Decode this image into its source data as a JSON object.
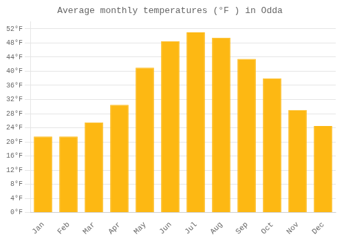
{
  "chart_data": {
    "type": "bar",
    "title": "Average monthly temperatures (°F ) in Odda",
    "categories": [
      "Jan",
      "Feb",
      "Mar",
      "Apr",
      "May",
      "Jun",
      "Jul",
      "Aug",
      "Sep",
      "Oct",
      "Nov",
      "Dec"
    ],
    "values": [
      21.5,
      21.5,
      25.5,
      30.5,
      41.0,
      48.5,
      51.0,
      49.5,
      43.5,
      38.0,
      29.0,
      24.5
    ],
    "color": "#FDB813",
    "ylim": [
      0,
      54
    ],
    "yticks": [
      {
        "value": 0,
        "label": "0°F"
      },
      {
        "value": 4,
        "label": "4°F"
      },
      {
        "value": 8,
        "label": "8°F"
      },
      {
        "value": 12,
        "label": "12°F"
      },
      {
        "value": 16,
        "label": "16°F"
      },
      {
        "value": 20,
        "label": "20°F"
      },
      {
        "value": 24,
        "label": "24°F"
      },
      {
        "value": 28,
        "label": "28°F"
      },
      {
        "value": 32,
        "label": "32°F"
      },
      {
        "value": 36,
        "label": "36°F"
      },
      {
        "value": 40,
        "label": "40°F"
      },
      {
        "value": 44,
        "label": "44°F"
      },
      {
        "value": 48,
        "label": "48°F"
      },
      {
        "value": 52,
        "label": "52°F"
      }
    ],
    "grid": true
  }
}
